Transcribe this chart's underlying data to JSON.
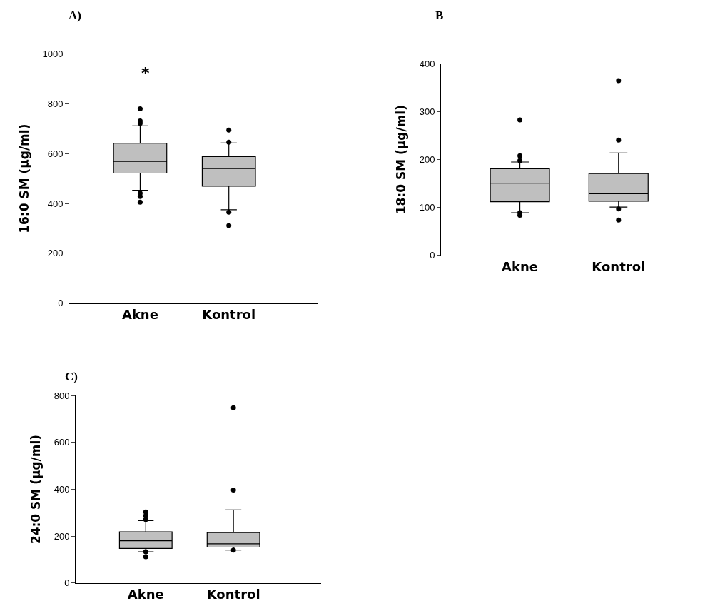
{
  "chart_data": [
    {
      "type": "box",
      "title": "A)",
      "ylabel": "16:0 SM (µg/ml)",
      "categories": [
        "Akne",
        "Kontrol"
      ],
      "ylim": [
        0,
        1000
      ],
      "yticks": [
        0,
        200,
        400,
        600,
        800,
        1000
      ],
      "annotations": [
        "*"
      ],
      "series": [
        {
          "color": "#bfbfbf",
          "boxes": [
            {
              "low": 453,
              "q1": 522,
              "median": 569,
              "q3": 642,
              "high": 712,
              "outliers": [
                780,
                731,
                722,
                441,
                428,
                405
              ]
            },
            {
              "low": 375,
              "q1": 469,
              "median": 540,
              "q3": 588,
              "high": 643,
              "outliers": [
                695,
                646,
                365,
                311
              ]
            }
          ]
        }
      ]
    },
    {
      "type": "box",
      "title": "B",
      "ylabel": "18:0 SM (µg/ml)",
      "categories": [
        "Akne",
        "Kontrol"
      ],
      "ylim": [
        0,
        400
      ],
      "yticks": [
        0,
        100,
        200,
        300,
        400
      ],
      "series": [
        {
          "color": "#bfbfbf",
          "boxes": [
            {
              "low": 89,
              "q1": 112,
              "median": 151,
              "q3": 181,
              "high": 195,
              "outliers": [
                283,
                208,
                198,
                89,
                84
              ]
            },
            {
              "low": 101,
              "q1": 113,
              "median": 129,
              "q3": 171,
              "high": 214,
              "outliers": [
                365,
                241,
                97,
                74
              ]
            }
          ]
        }
      ]
    },
    {
      "type": "box",
      "title": "C)",
      "ylabel": "24:0 SM (µg/ml)",
      "categories": [
        "Akne",
        "Kontrol"
      ],
      "ylim": [
        0,
        800
      ],
      "yticks": [
        0,
        200,
        400,
        600,
        800
      ],
      "series": [
        {
          "color": "#bfbfbf",
          "boxes": [
            {
              "low": 133,
              "q1": 147,
              "median": 180,
              "q3": 218,
              "high": 266,
              "outliers": [
                303,
                287,
                271,
                133,
                112
              ]
            },
            {
              "low": 140,
              "q1": 153,
              "median": 167,
              "q3": 215,
              "high": 312,
              "outliers": [
                748,
                397,
                140
              ]
            }
          ]
        }
      ]
    }
  ]
}
